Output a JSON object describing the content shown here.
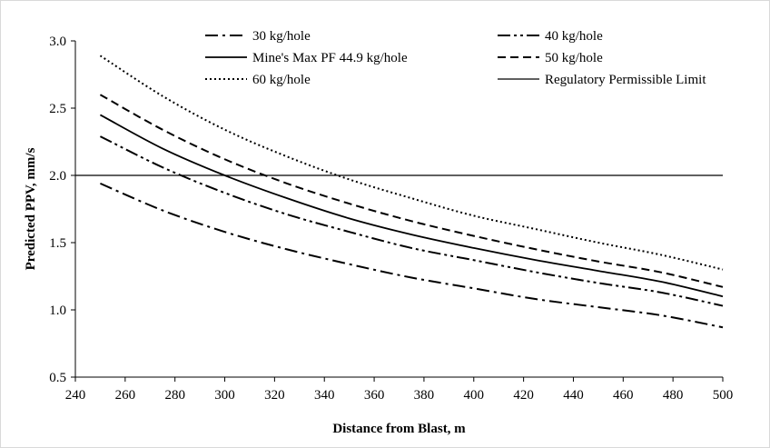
{
  "chart_data": {
    "type": "line",
    "title": "",
    "xlabel": "Distance from Blast, m",
    "ylabel": "Predicted PPV, mm/s",
    "xlim": [
      240,
      500
    ],
    "ylim": [
      0.5,
      3.0
    ],
    "x_ticks": [
      "240",
      "260",
      "280",
      "300",
      "320",
      "340",
      "360",
      "380",
      "400",
      "420",
      "440",
      "460",
      "480",
      "500"
    ],
    "y_ticks": [
      "0.5",
      "1.0",
      "1.5",
      "2.0",
      "2.5",
      "3.0"
    ],
    "grid": false,
    "legend_position": "top",
    "x": [
      250,
      275,
      300,
      325,
      350,
      375,
      400,
      425,
      450,
      475,
      500
    ],
    "series": [
      {
        "name": "30 kg/hole",
        "style": "dash-dot",
        "values": [
          1.94,
          1.74,
          1.58,
          1.45,
          1.34,
          1.24,
          1.16,
          1.08,
          1.02,
          0.96,
          0.87
        ]
      },
      {
        "name": "40 kg/hole",
        "style": "dash-dot-dot",
        "values": [
          2.29,
          2.06,
          1.87,
          1.71,
          1.58,
          1.46,
          1.37,
          1.28,
          1.2,
          1.13,
          1.03
        ]
      },
      {
        "name": "Mine's Max PF 44.9 kg/hole",
        "style": "solid",
        "values": [
          2.45,
          2.2,
          2.0,
          1.83,
          1.68,
          1.56,
          1.46,
          1.37,
          1.29,
          1.21,
          1.1
        ]
      },
      {
        "name": "50 kg/hole",
        "style": "dash",
        "values": [
          2.6,
          2.34,
          2.12,
          1.94,
          1.79,
          1.66,
          1.55,
          1.45,
          1.36,
          1.28,
          1.17
        ]
      },
      {
        "name": "60 kg/hole",
        "style": "dot",
        "values": [
          2.89,
          2.59,
          2.34,
          2.14,
          1.97,
          1.83,
          1.7,
          1.6,
          1.5,
          1.41,
          1.3
        ]
      },
      {
        "name": "Regulatory Permissible Limit",
        "style": "solid-thin",
        "values": [
          2.0,
          2.0,
          2.0,
          2.0,
          2.0,
          2.0,
          2.0,
          2.0,
          2.0,
          2.0,
          2.0
        ]
      }
    ]
  }
}
